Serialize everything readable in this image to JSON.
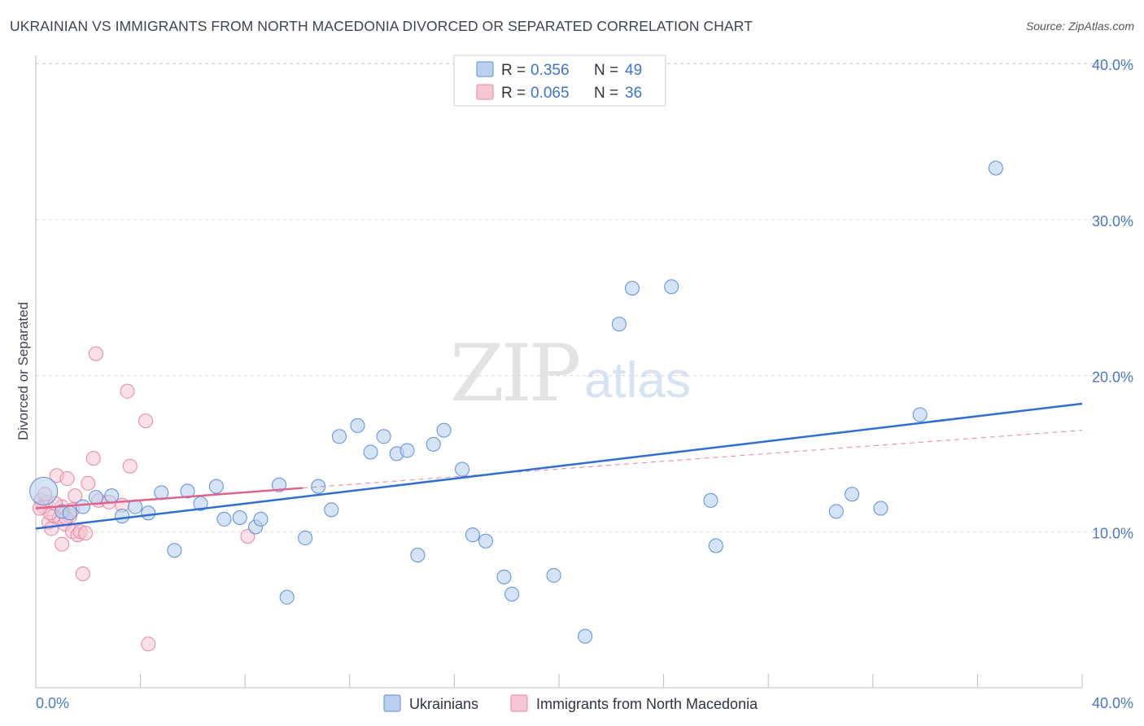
{
  "title": "UKRAINIAN VS IMMIGRANTS FROM NORTH MACEDONIA DIVORCED OR SEPARATED CORRELATION CHART",
  "source": "Source: ZipAtlas.com",
  "watermark": {
    "part1": "ZIP",
    "part2": "atlas"
  },
  "colors": {
    "blue_fill": "#b9d0f0",
    "blue_stroke": "#5b8fd8",
    "blue_line": "#2f6fd1",
    "pink_fill": "#f6c6d4",
    "pink_stroke": "#e8849f",
    "pink_line": "#e0628b",
    "grid": "#d9d9d9",
    "tick_text": "#4a78c2"
  },
  "legend": {
    "rows": [
      {
        "r_label": "R = ",
        "r_value": "0.356",
        "n_label": "N = ",
        "n_value": "49"
      },
      {
        "r_label": "R = ",
        "r_value": "0.065",
        "n_label": "N = ",
        "n_value": "36"
      }
    ]
  },
  "bottom_legend": {
    "series1": "Ukrainians",
    "series2": "Immigrants from North Macedonia"
  },
  "chart_data": {
    "type": "scatter",
    "title": "UKRAINIAN VS IMMIGRANTS FROM NORTH MACEDONIA DIVORCED OR SEPARATED CORRELATION CHART",
    "xlabel": "",
    "ylabel": "Divorced or Separated",
    "xlim": [
      0,
      40
    ],
    "ylim": [
      0,
      40
    ],
    "x_tick_labels": [
      "0.0%",
      "40.0%"
    ],
    "y_tick_labels": [
      "10.0%",
      "20.0%",
      "30.0%",
      "40.0%"
    ],
    "y_ticks": [
      10,
      20,
      30,
      40
    ],
    "series": [
      {
        "name": "Ukrainians",
        "R": 0.356,
        "N": 49,
        "trend": {
          "x0": 0,
          "y0": 10.2,
          "x1": 40,
          "y1": 18.2
        },
        "points": [
          [
            0.3,
            12.6
          ],
          [
            1.0,
            11.3
          ],
          [
            1.8,
            11.6
          ],
          [
            2.3,
            12.2
          ],
          [
            2.9,
            12.3
          ],
          [
            3.3,
            11.0
          ],
          [
            3.8,
            11.6
          ],
          [
            4.3,
            11.2
          ],
          [
            4.8,
            12.5
          ],
          [
            5.3,
            8.8
          ],
          [
            5.8,
            12.6
          ],
          [
            6.3,
            11.8
          ],
          [
            6.9,
            12.9
          ],
          [
            7.2,
            10.8
          ],
          [
            7.8,
            10.9
          ],
          [
            8.4,
            10.3
          ],
          [
            8.6,
            10.8
          ],
          [
            9.3,
            13.0
          ],
          [
            9.6,
            5.8
          ],
          [
            10.3,
            9.6
          ],
          [
            10.8,
            12.9
          ],
          [
            11.3,
            11.4
          ],
          [
            11.6,
            16.1
          ],
          [
            12.3,
            16.8
          ],
          [
            12.8,
            15.1
          ],
          [
            13.3,
            16.1
          ],
          [
            13.8,
            15.0
          ],
          [
            14.2,
            15.2
          ],
          [
            14.6,
            8.5
          ],
          [
            15.2,
            15.6
          ],
          [
            15.6,
            16.5
          ],
          [
            16.3,
            14.0
          ],
          [
            16.7,
            9.8
          ],
          [
            17.2,
            9.4
          ],
          [
            17.9,
            7.1
          ],
          [
            18.2,
            6.0
          ],
          [
            19.8,
            7.2
          ],
          [
            21.0,
            3.3
          ],
          [
            22.3,
            23.3
          ],
          [
            22.8,
            25.6
          ],
          [
            24.3,
            25.7
          ],
          [
            25.8,
            12.0
          ],
          [
            26.0,
            9.1
          ],
          [
            30.6,
            11.3
          ],
          [
            31.2,
            12.4
          ],
          [
            32.3,
            11.5
          ],
          [
            33.8,
            17.5
          ],
          [
            36.7,
            33.3
          ],
          [
            1.3,
            11.2
          ]
        ]
      },
      {
        "name": "Immigrants from North Macedonia",
        "R": 0.065,
        "N": 36,
        "trend": {
          "x0": 0,
          "y0": 11.5,
          "x1": 10.2,
          "y1": 12.8
        },
        "trend_ext": {
          "x0": 10.2,
          "y0": 12.8,
          "x1": 40,
          "y1": 16.5
        },
        "points": [
          [
            0.2,
            12.0
          ],
          [
            0.3,
            11.6
          ],
          [
            0.4,
            11.9
          ],
          [
            0.5,
            10.6
          ],
          [
            0.6,
            10.2
          ],
          [
            0.7,
            11.0
          ],
          [
            0.8,
            13.6
          ],
          [
            0.9,
            10.9
          ],
          [
            1.0,
            9.2
          ],
          [
            1.0,
            11.6
          ],
          [
            1.1,
            10.5
          ],
          [
            1.2,
            13.4
          ],
          [
            1.3,
            11.0
          ],
          [
            1.4,
            11.4
          ],
          [
            1.4,
            10.0
          ],
          [
            1.5,
            12.3
          ],
          [
            1.6,
            9.8
          ],
          [
            1.7,
            10.0
          ],
          [
            1.8,
            7.3
          ],
          [
            1.9,
            9.9
          ],
          [
            2.0,
            13.1
          ],
          [
            2.2,
            14.7
          ],
          [
            2.3,
            21.4
          ],
          [
            2.4,
            12.0
          ],
          [
            2.8,
            11.9
          ],
          [
            3.3,
            11.7
          ],
          [
            3.5,
            19.0
          ],
          [
            3.6,
            14.2
          ],
          [
            4.2,
            17.1
          ],
          [
            4.3,
            2.8
          ],
          [
            8.1,
            9.7
          ],
          [
            0.35,
            12.4
          ],
          [
            0.55,
            11.2
          ],
          [
            0.75,
            11.8
          ],
          [
            1.15,
            10.9
          ],
          [
            0.15,
            11.5
          ]
        ]
      }
    ]
  },
  "y_axis_label": "Divorced or Separated"
}
